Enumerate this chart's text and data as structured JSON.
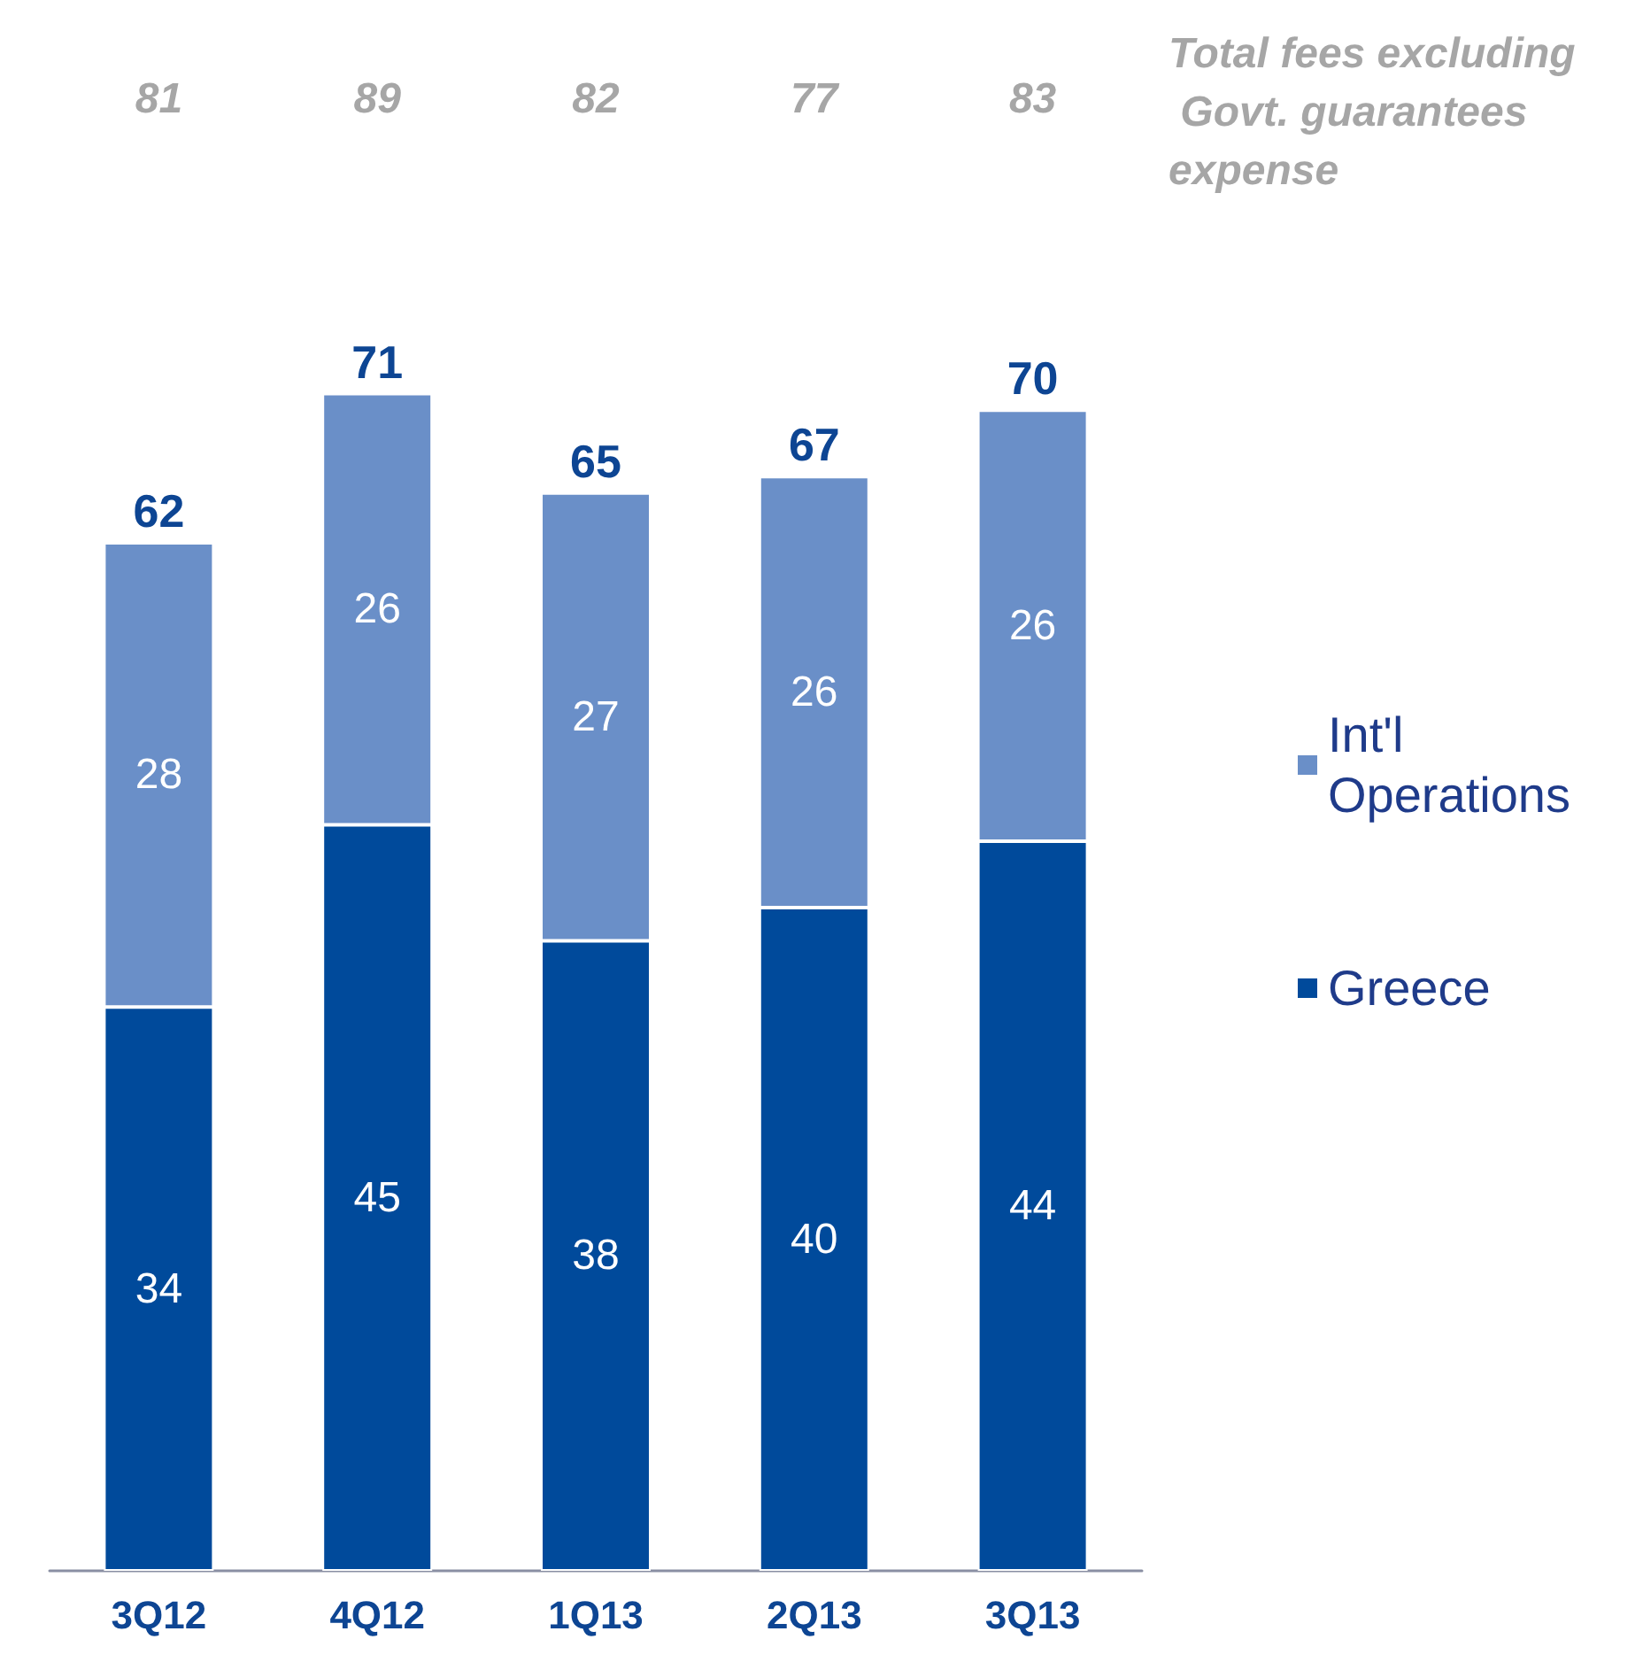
{
  "chart_data": {
    "type": "bar",
    "stacked": true,
    "categories": [
      "3Q12",
      "4Q12",
      "1Q13",
      "2Q13",
      "3Q13"
    ],
    "series": [
      {
        "name": "Greece",
        "color": "#004a9b",
        "values": [
          34,
          45,
          38,
          40,
          44
        ]
      },
      {
        "name": "Int'l Operations",
        "color": "#6a8fc8",
        "values": [
          28,
          26,
          27,
          26,
          26
        ]
      }
    ],
    "data_labels": true,
    "totals": [
      "62",
      "71",
      "65",
      "67",
      "70"
    ],
    "legend": "right",
    "annotations": [
      "Total fees excluding Govt. guarantees expense",
      "81",
      "89",
      "82",
      "77",
      "83"
    ]
  }
}
